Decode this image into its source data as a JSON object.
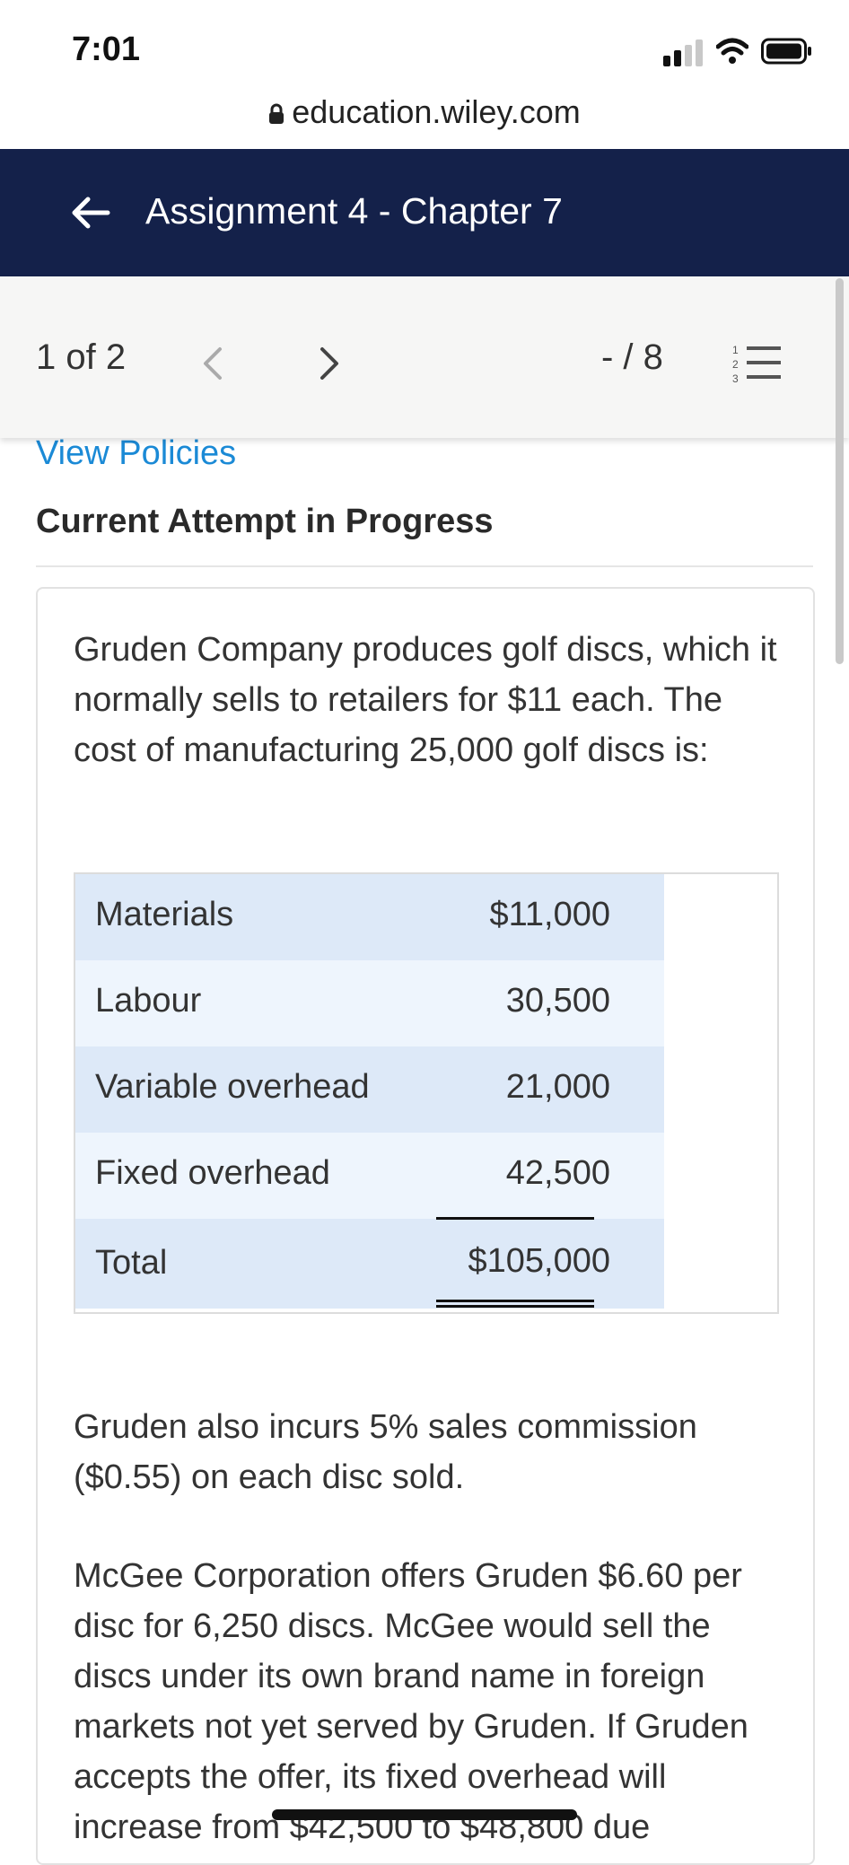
{
  "status": {
    "time": "7:01"
  },
  "browser": {
    "url": "education.wiley.com"
  },
  "header": {
    "title": "Assignment 4 - Chapter 7"
  },
  "pager": {
    "count": "1 of 2",
    "score": "- / 8"
  },
  "links": {
    "view_policies": "View Policies"
  },
  "attempt": {
    "label": "Current Attempt in Progress"
  },
  "question": {
    "intro": "Gruden Company produces golf discs, which it normally sells to retailers for $11 each. The cost of manufacturing 25,000 golf discs is:",
    "table": [
      {
        "label": "Materials",
        "amount": "$11,000"
      },
      {
        "label": "Labour",
        "amount": "30,500"
      },
      {
        "label": "Variable overhead",
        "amount": "21,000"
      },
      {
        "label": "Fixed overhead",
        "amount": "42,500"
      },
      {
        "label": "Total",
        "amount": "$105,000"
      }
    ],
    "commission": "Gruden also incurs 5% sales commission ($0.55) on each disc sold.",
    "offer": "McGee Corporation offers Gruden $6.60 per disc for 6,250 discs. McGee would sell the discs under its own brand name in foreign markets not yet served by Gruden. If Gruden accepts the offer, its fixed overhead will increase from $42,500 to $48,800 due"
  },
  "colors": {
    "header_bg": "#14214a",
    "link": "#1b8ad6",
    "row_dark": "#dde9f8",
    "row_light": "#eef5fd"
  }
}
